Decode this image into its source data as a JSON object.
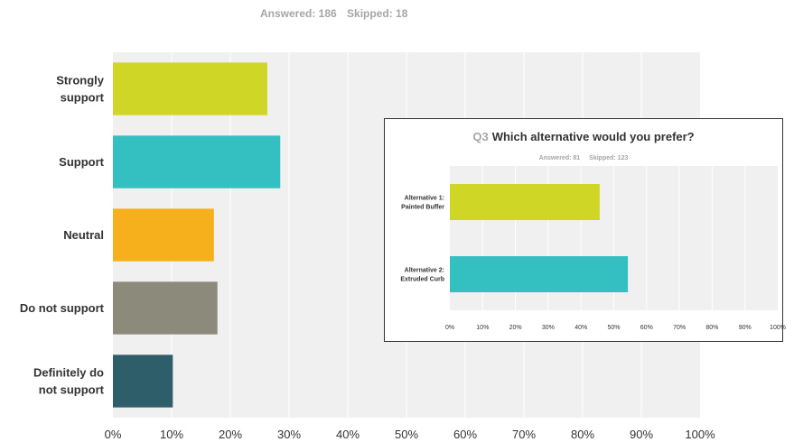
{
  "summary": {
    "answered": "Answered: 186",
    "skipped": "Skipped: 18"
  },
  "chart_data": [
    {
      "type": "bar",
      "orientation": "horizontal",
      "categories": [
        "Strongly support",
        "Support",
        "Neutral",
        "Do not support",
        "Definitely do not support"
      ],
      "category_lines": [
        [
          "Strongly",
          "support"
        ],
        [
          "Support"
        ],
        [
          "Neutral"
        ],
        [
          "Do not support"
        ],
        [
          "Definitely do",
          "not support"
        ]
      ],
      "values": [
        26.3,
        28.5,
        17.2,
        17.8,
        10.2
      ],
      "colors": [
        "#d0d626",
        "#34bfc0",
        "#f6b01c",
        "#8c8a7a",
        "#2e5e6a"
      ],
      "xlim": [
        0,
        100
      ],
      "xticks": [
        "0%",
        "10%",
        "20%",
        "30%",
        "40%",
        "50%",
        "60%",
        "70%",
        "80%",
        "90%",
        "100%"
      ],
      "grid": true
    },
    {
      "type": "bar",
      "orientation": "horizontal",
      "title_num": "Q3",
      "title": "Which alternative would you prefer?",
      "answered": "Answered: 81",
      "skipped": "Skipped: 123",
      "categories": [
        "Alternative 1: Painted Buffer",
        "Alternative 2: Extruded Curb"
      ],
      "category_lines": [
        [
          "Alternative 1:",
          "Painted Buffer"
        ],
        [
          "Alternative 2:",
          "Extruded Curb"
        ]
      ],
      "values": [
        45.7,
        54.3
      ],
      "colors": [
        "#d0d626",
        "#34bfc0"
      ],
      "xlim": [
        0,
        100
      ],
      "xticks": [
        "0%",
        "10%",
        "20%",
        "30%",
        "40%",
        "50%",
        "60%",
        "70%",
        "80%",
        "90%",
        "100%"
      ],
      "grid": true
    }
  ]
}
